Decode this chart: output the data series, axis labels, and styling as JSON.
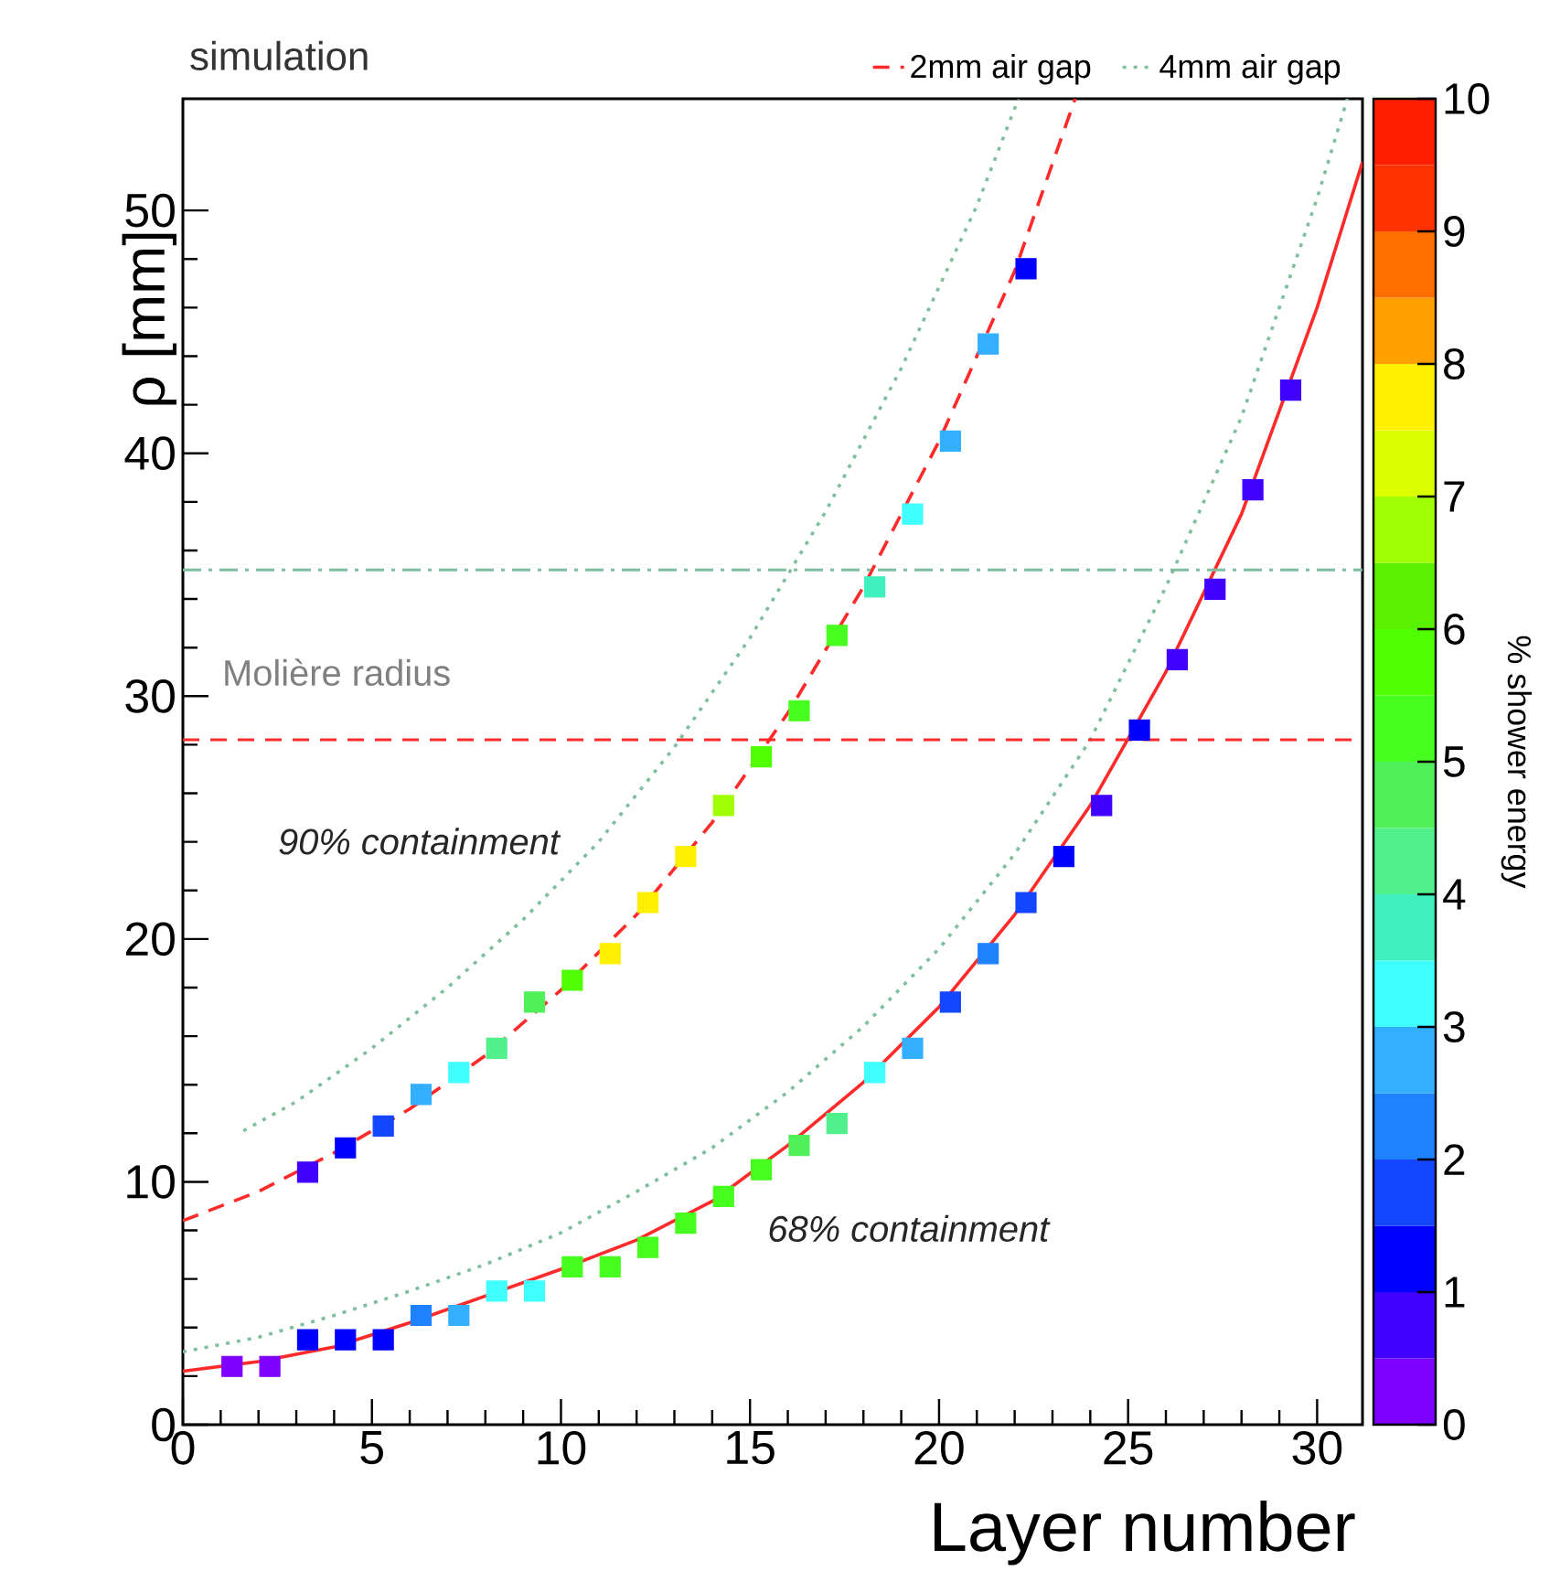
{
  "chart_data": {
    "type": "scatter",
    "title": "simulation",
    "xlabel": "Layer number",
    "ylabel": "ρ [mm]",
    "clabel": "% shower energy",
    "xlim": [
      0,
      31.2
    ],
    "ylim": [
      0,
      54.6
    ],
    "xticks": [
      0,
      5,
      10,
      15,
      20,
      25,
      30
    ],
    "yticks": [
      0,
      10,
      20,
      30,
      40,
      50
    ],
    "clim": [
      0,
      10
    ],
    "cticks": [
      0,
      1,
      2,
      3,
      4,
      5,
      6,
      7,
      8,
      9,
      10
    ],
    "legend": "top",
    "series": [
      {
        "type": "scatter",
        "marker": "square",
        "x": [
          3.3,
          4.3,
          5.3,
          6.3,
          7.3,
          8.3,
          9.3,
          10.3,
          11.3,
          12.3,
          13.3,
          14.3,
          15.3,
          16.3,
          17.3,
          18.3,
          19.3,
          20.3,
          21.3,
          22.3
        ],
        "values": [
          10.4,
          11.4,
          12.3,
          13.6,
          14.5,
          15.5,
          17.4,
          18.3,
          19.4,
          21.5,
          23.4,
          25.5,
          27.5,
          29.4,
          32.5,
          34.5,
          37.5,
          40.5,
          44.5,
          47.6
        ],
        "cvalues": [
          0.8,
          1.2,
          1.7,
          2.7,
          3.2,
          4.2,
          4.7,
          5.7,
          7.7,
          7.7,
          7.7,
          6.7,
          5.7,
          5.2,
          5.2,
          3.7,
          3.2,
          2.7,
          2.7,
          1.2
        ],
        "colors": [
          "#4000ff",
          "#0000ff",
          "#1446ff",
          "#32afff",
          "#40ffff",
          "#50f08c",
          "#50f05a",
          "#50ff00",
          "#fff000",
          "#fff000",
          "#fff000",
          "#a0ff00",
          "#50ff00",
          "#46ff1e",
          "#46ff1e",
          "#40f0be",
          "#40ffff",
          "#32afff",
          "#32afff",
          "#0000ff"
        ]
      },
      {
        "type": "scatter",
        "marker": "square",
        "x": [
          1.3,
          2.3,
          3.3,
          4.3,
          5.3,
          6.3,
          7.3,
          8.3,
          9.3,
          10.3,
          11.3,
          12.3,
          13.3,
          14.3,
          15.3,
          16.3,
          17.3,
          18.3,
          19.3,
          20.3,
          21.3,
          22.3,
          23.3,
          24.3,
          25.3,
          26.3,
          27.3,
          28.3,
          29.3
        ],
        "values": [
          2.4,
          2.4,
          3.5,
          3.5,
          3.5,
          4.5,
          4.5,
          5.5,
          5.5,
          6.5,
          6.5,
          7.3,
          8.3,
          9.4,
          10.5,
          11.5,
          12.4,
          14.5,
          15.5,
          17.4,
          19.4,
          21.5,
          23.4,
          25.5,
          28.6,
          31.5,
          34.4,
          38.5,
          42.6
        ],
        "cvalues": [
          0.3,
          0.3,
          1.2,
          1.2,
          1.2,
          2.2,
          2.7,
          3.2,
          3.2,
          5.2,
          5.2,
          5.2,
          5.2,
          5.2,
          5.2,
          4.7,
          4.2,
          3.2,
          2.7,
          1.7,
          2.2,
          1.7,
          1.2,
          0.7,
          1.2,
          0.7,
          0.7,
          0.7,
          0.7
        ],
        "colors": [
          "#7f00ff",
          "#7f00ff",
          "#0000ff",
          "#0000ff",
          "#0000ff",
          "#1e82ff",
          "#32afff",
          "#40ffff",
          "#40ffff",
          "#46ff1e",
          "#46ff1e",
          "#46ff1e",
          "#46ff1e",
          "#46ff1e",
          "#46ff1e",
          "#50f05a",
          "#50f08c",
          "#40ffff",
          "#32afff",
          "#1446ff",
          "#1e82ff",
          "#1446ff",
          "#0000ff",
          "#4000ff",
          "#0000ff",
          "#4000ff",
          "#4000ff",
          "#4000ff",
          "#4000ff"
        ]
      },
      {
        "type": "line",
        "name": "2mm air gap",
        "color": "#ff2a2a",
        "line_style": "dashed",
        "marker": "none",
        "x": [
          0,
          2,
          4,
          6,
          8,
          10,
          12,
          14,
          16,
          18,
          20,
          22,
          23.6
        ],
        "values": [
          8.4,
          9.6,
          11.2,
          13.0,
          15.2,
          17.9,
          21.0,
          24.8,
          29.3,
          34.5,
          40.5,
          47.5,
          54.6
        ]
      },
      {
        "type": "line",
        "color": "#ff2a2a",
        "line_style": "solid",
        "marker": "none",
        "x": [
          0,
          2,
          4,
          6,
          8,
          10,
          12,
          14,
          16,
          18,
          20,
          22,
          24,
          26,
          28,
          30,
          31.2
        ],
        "values": [
          2.2,
          2.6,
          3.2,
          4.2,
          5.3,
          6.4,
          7.6,
          9.2,
          11.5,
          14.1,
          17.2,
          21.0,
          25.5,
          31.0,
          37.5,
          46.0,
          52.0
        ]
      },
      {
        "type": "line",
        "name": "4mm air gap",
        "color": "#7fbf9f",
        "line_style": "dotted",
        "marker": "none",
        "x": [
          1.6,
          3,
          5,
          7,
          9,
          11,
          13,
          15,
          17,
          19,
          21,
          22.1
        ],
        "values": [
          12.1,
          13.3,
          15.5,
          18.0,
          20.8,
          24.0,
          27.9,
          32.4,
          37.6,
          43.5,
          50.2,
          54.6
        ]
      },
      {
        "type": "line",
        "color": "#7fbf9f",
        "line_style": "dotted",
        "marker": "none",
        "x": [
          0,
          2,
          4,
          6,
          8,
          10,
          12,
          14,
          16,
          18,
          20,
          22,
          24,
          26,
          28,
          30,
          30.8
        ],
        "values": [
          3.0,
          3.6,
          4.5,
          5.5,
          6.6,
          7.9,
          9.6,
          11.4,
          13.7,
          16.4,
          19.6,
          23.5,
          28.2,
          34.5,
          41.5,
          50.5,
          54.6
        ]
      }
    ],
    "ref_lines": [
      {
        "axis": "y",
        "value": 35.2,
        "color": "#7fbf9f",
        "line_style": "dashdot"
      },
      {
        "axis": "y",
        "value": 28.2,
        "color": "#ff2a2a",
        "line_style": "dashed",
        "label": "Molière radius"
      }
    ],
    "annotations": [
      "90% containment",
      "68% containment"
    ]
  }
}
